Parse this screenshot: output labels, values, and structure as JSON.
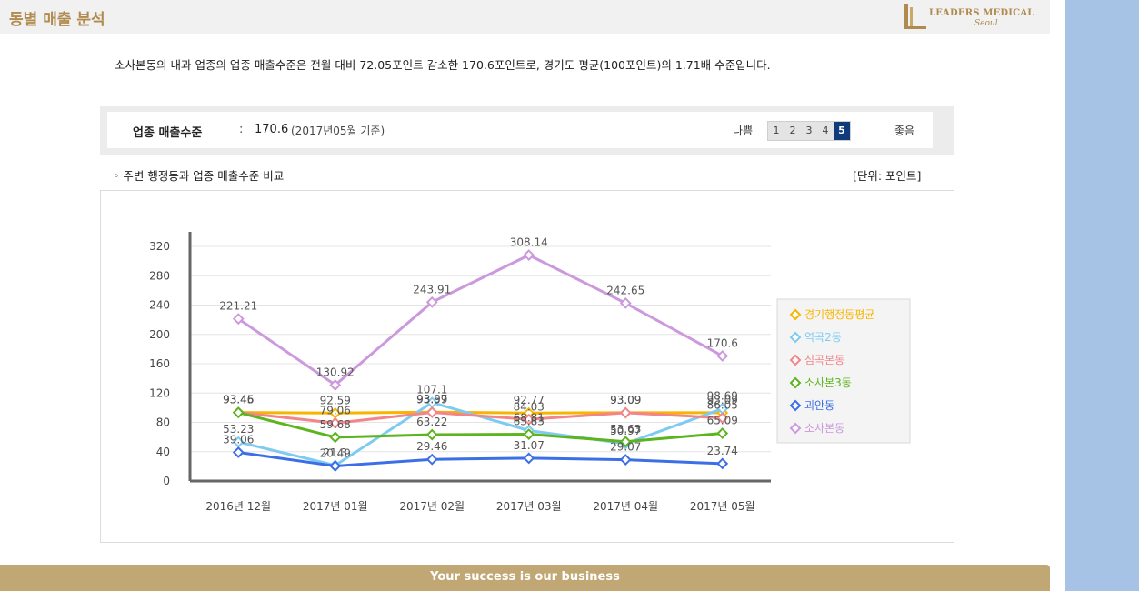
{
  "header": {
    "title": "동별 매출 분석",
    "logo_name": "LEADERS MEDICAL",
    "logo_sub": "Seoul"
  },
  "summary_text": "소사본동의 내과 업종의 업종 매출수준은 전월 대비 72.05포인트 감소한 170.6포인트로, 경기도 평균(100포인트)의 1.71배 수준입니다.",
  "level": {
    "label": "업종 매출수준",
    "separator": ":",
    "value": "170.6",
    "date": "(2017년05월 기준)",
    "scale_bad": "나쁨",
    "scale_good": "좋음",
    "scale_values": [
      "1",
      "2",
      "3",
      "4",
      "5"
    ],
    "active": 5
  },
  "compare_title": "◦ 주변 행정동과 업종 매출수준 비교",
  "unit_label": "[단위: 포인트]",
  "chart_data": {
    "type": "line",
    "categories": [
      "2016년 12월",
      "2017년 01월",
      "2017년 02월",
      "2017년 03월",
      "2017년 04월",
      "2017년 05월"
    ],
    "y_ticks": [
      0,
      40,
      80,
      120,
      160,
      200,
      240,
      280,
      320
    ],
    "ylim": [
      0,
      320
    ],
    "legend_position": "right",
    "series": [
      {
        "name": "경기행정동평균",
        "color": "#f7b500",
        "values": [
          93.46,
          92.59,
          93.97,
          92.77,
          93.09,
          93.09
        ]
      },
      {
        "name": "역곡2동",
        "color": "#7ecbf2",
        "values": [
          53.23,
          21.3,
          107.1,
          68.81,
          50.97,
          98.69
        ]
      },
      {
        "name": "심곡본동",
        "color": "#f2858a",
        "values": [
          93.46,
          79.06,
          93.59,
          84.03,
          93.09,
          86.05
        ]
      },
      {
        "name": "소사본3동",
        "color": "#5cb41e",
        "values": [
          93.45,
          59.68,
          63.22,
          63.83,
          53.63,
          65.09
        ]
      },
      {
        "name": "괴안동",
        "color": "#3c6fe6",
        "values": [
          39.06,
          20.49,
          29.46,
          31.07,
          29.07,
          23.74
        ]
      },
      {
        "name": "소사본동",
        "color": "#cc99dd",
        "values": [
          221.21,
          130.92,
          243.91,
          308.14,
          242.65,
          170.6
        ]
      }
    ]
  },
  "footer_text": "Your success is our business"
}
